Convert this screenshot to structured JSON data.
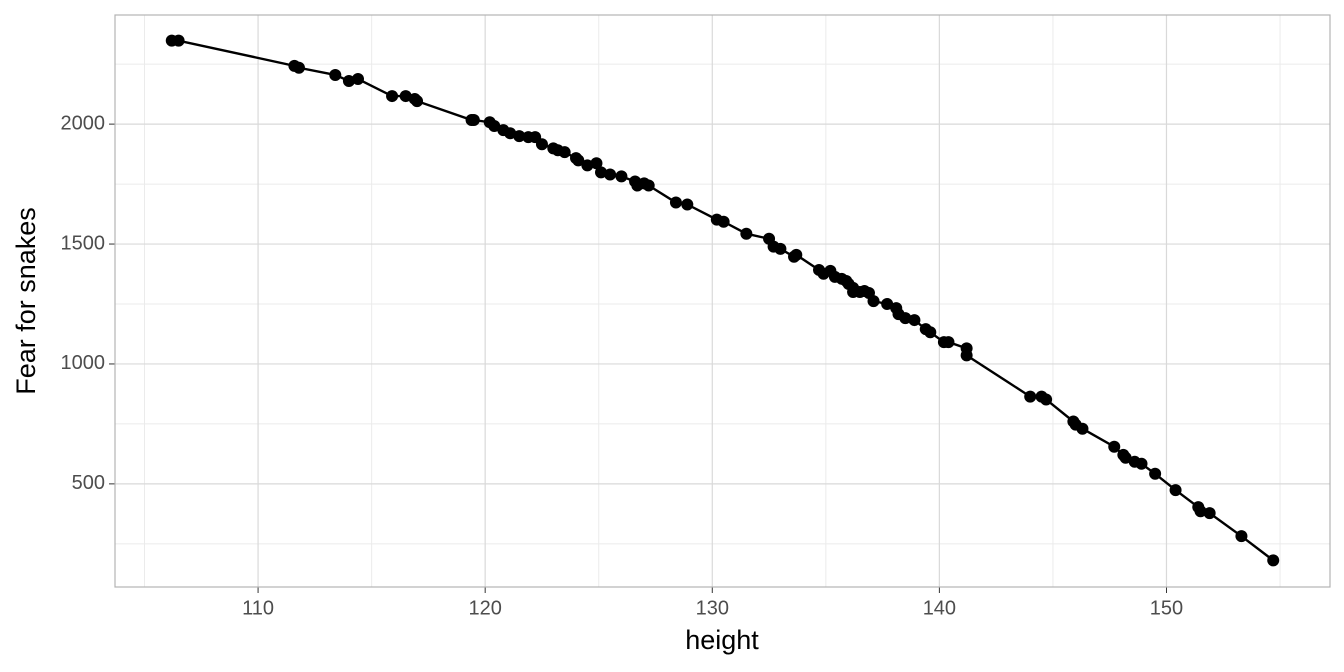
{
  "chart_data": {
    "type": "scatter",
    "connect": true,
    "color": "#000000",
    "xlabel": "height",
    "ylabel": "Fear for snakes",
    "x": [
      106.2,
      106.5,
      111.6,
      111.8,
      113.4,
      114.0,
      114.4,
      115.9,
      116.5,
      116.9,
      117.0,
      119.4,
      119.5,
      120.2,
      120.4,
      120.8,
      121.1,
      121.5,
      121.9,
      122.2,
      122.5,
      123.0,
      123.2,
      123.5,
      124.0,
      124.1,
      124.5,
      124.9,
      125.1,
      125.5,
      126.0,
      126.6,
      126.7,
      127.0,
      127.2,
      128.4,
      128.9,
      130.2,
      130.5,
      131.5,
      132.5,
      132.7,
      133.0,
      133.6,
      133.7,
      134.7,
      134.9,
      135.2,
      135.4,
      135.7,
      135.9,
      136.0,
      136.2,
      136.2,
      136.5,
      136.7,
      136.9,
      137.1,
      137.7,
      138.1,
      138.2,
      138.5,
      138.9,
      139.4,
      139.6,
      140.2,
      140.4,
      141.2,
      141.2,
      144.0,
      144.5,
      144.7,
      145.9,
      146.0,
      146.3,
      147.7,
      148.1,
      148.2,
      148.6,
      148.9,
      149.5,
      150.4,
      151.4,
      151.5,
      151.9,
      153.3,
      154.7
    ],
    "y": [
      2348,
      2348,
      2243,
      2235,
      2205,
      2180,
      2188,
      2117,
      2117,
      2105,
      2096,
      2017,
      2017,
      2008,
      1992,
      1975,
      1962,
      1950,
      1946,
      1946,
      1916,
      1899,
      1891,
      1883,
      1858,
      1849,
      1828,
      1837,
      1799,
      1790,
      1782,
      1761,
      1744,
      1753,
      1744,
      1673,
      1665,
      1602,
      1593,
      1543,
      1522,
      1489,
      1480,
      1447,
      1455,
      1392,
      1376,
      1388,
      1363,
      1355,
      1346,
      1334,
      1317,
      1300,
      1300,
      1304,
      1296,
      1262,
      1250,
      1233,
      1208,
      1191,
      1183,
      1145,
      1132,
      1091,
      1091,
      1065,
      1036,
      864,
      864,
      852,
      760,
      747,
      730,
      655,
      621,
      609,
      592,
      584,
      542,
      474,
      403,
      386,
      378,
      282,
      181
    ],
    "xlim": [
      103.7,
      157.2
    ],
    "ylim": [
      70,
      2455
    ],
    "xticks": [
      110,
      120,
      130,
      140,
      150
    ],
    "yticks": [
      500,
      1000,
      1500,
      2000
    ],
    "x_minor_ticks": [
      105,
      115,
      125,
      135,
      145,
      155
    ],
    "y_minor_ticks": [
      250,
      750,
      1250,
      1750,
      2250
    ],
    "grid": true
  }
}
